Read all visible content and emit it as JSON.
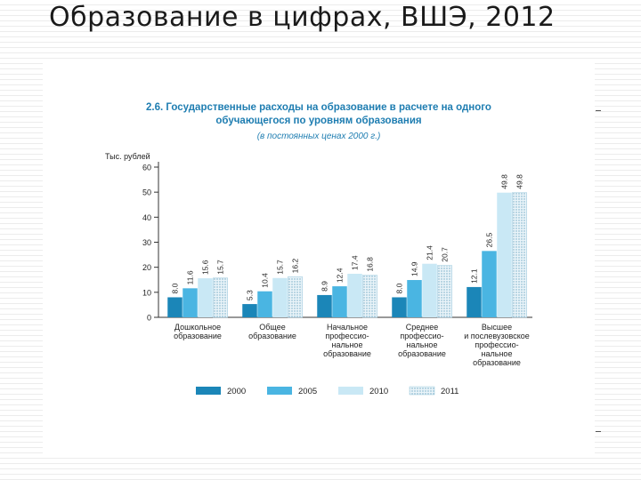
{
  "slide": {
    "title": "Образование в цифрах, ВШЭ, 2012"
  },
  "chart_data": {
    "type": "bar",
    "title_number": "2.6.",
    "title_line1": "Государственные расходы на образование в расчете на одного",
    "title_line2": "обучающегося по уровням образования",
    "subtitle": "(в постоянных ценах 2000 г.)",
    "ylabel": "Тыс. рублей",
    "ylim": [
      0,
      60
    ],
    "yticks": [
      0,
      10,
      20,
      30,
      40,
      50,
      60
    ],
    "grid": false,
    "legend_position": "bottom",
    "categories": [
      [
        "Дошкольное",
        "образование"
      ],
      [
        "Общее",
        "образование"
      ],
      [
        "Начальное",
        "профессио-",
        "нальное",
        "образование"
      ],
      [
        "Среднее",
        "профессио-",
        "нальное",
        "образование"
      ],
      [
        "Высшее",
        "и послевузовское",
        "профессио-",
        "нальное",
        "образование"
      ]
    ],
    "series": [
      {
        "name": "2000",
        "values": [
          8.0,
          5.3,
          8.9,
          8.0,
          12.1
        ],
        "labels": [
          "8.0",
          "5.3",
          "8.9",
          "8.0",
          "12.1"
        ],
        "color": "#1b86b8",
        "pattern": "solid"
      },
      {
        "name": "2005",
        "values": [
          11.6,
          10.4,
          12.4,
          14.9,
          26.5
        ],
        "labels": [
          "11.6",
          "10.4",
          "12.4",
          "14.9",
          "26.5"
        ],
        "color": "#4ab5e2",
        "pattern": "solid"
      },
      {
        "name": "2010",
        "values": [
          15.6,
          15.7,
          17.4,
          21.4,
          49.8
        ],
        "labels": [
          "15.6",
          "15.7",
          "17.4",
          "21.4",
          "49.8"
        ],
        "color": "#c9e8f5",
        "pattern": "solid"
      },
      {
        "name": "2011",
        "values": [
          15.7,
          16.2,
          16.8,
          20.7,
          49.8
        ],
        "labels": [
          "15.7",
          "16.2",
          "16.8",
          "20.7",
          "49.8"
        ],
        "color": "#e6f2f8",
        "pattern": "dotted"
      }
    ],
    "colors": {
      "title": "#1e7db1",
      "text": "#222222",
      "axis": "#333333"
    }
  }
}
